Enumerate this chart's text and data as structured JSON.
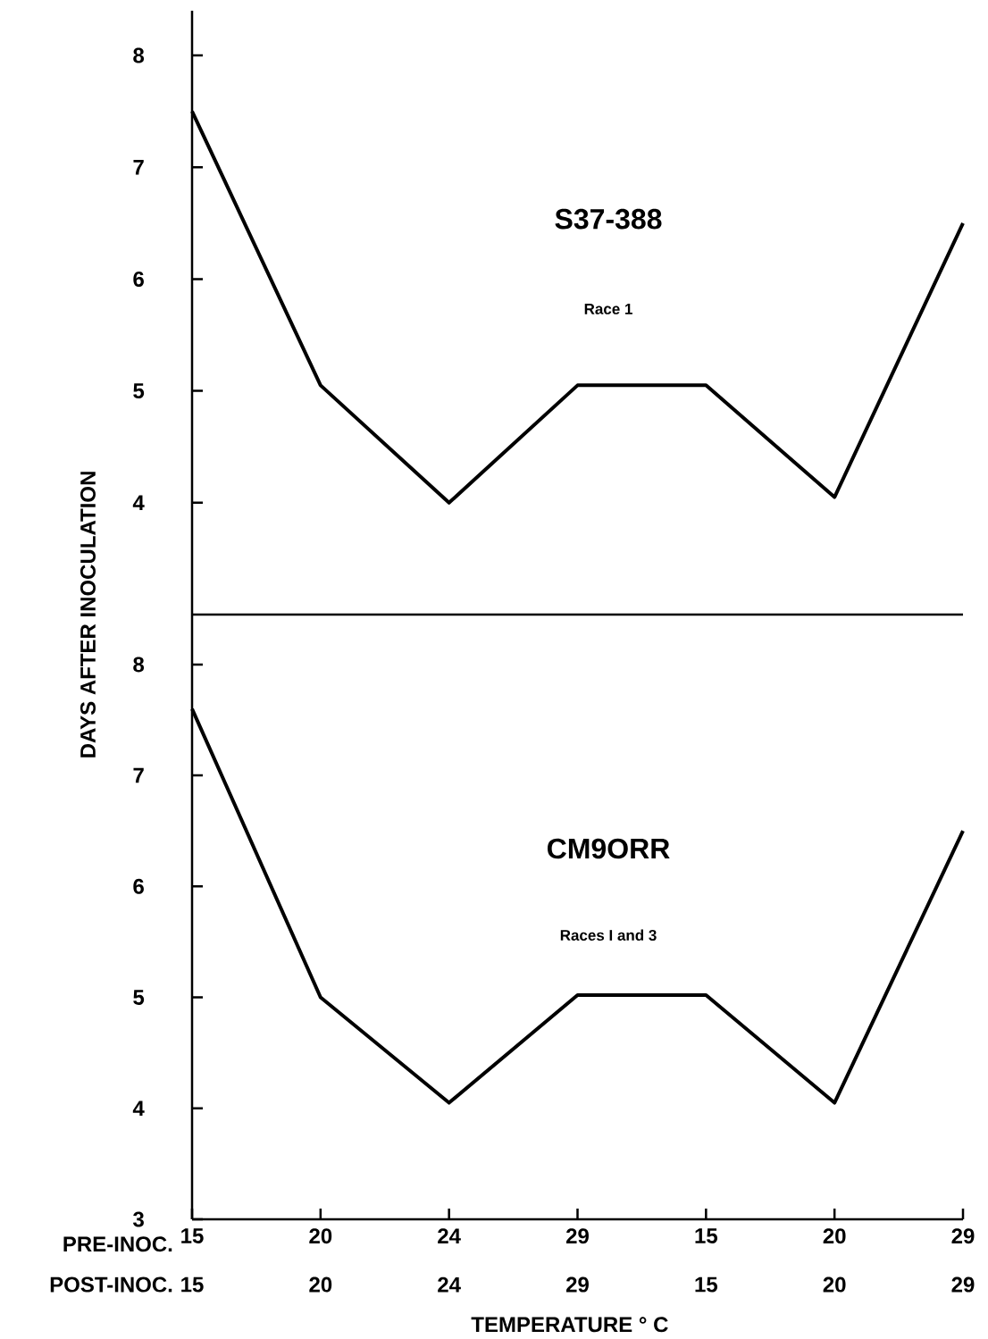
{
  "chart_data": [
    {
      "type": "line",
      "title": "S37-388",
      "subtitle": "Race 1",
      "ylabel": "DAYS AFTER INOCULATION",
      "categories": [
        "15",
        "20",
        "24",
        "29",
        "15",
        "20",
        "29"
      ],
      "series": [
        {
          "color": "#000000",
          "values": [
            7.5,
            5.05,
            4.0,
            5.05,
            5.05,
            4.05,
            6.5
          ]
        }
      ],
      "ylim": [
        3,
        8.4
      ],
      "yticks": [
        4,
        5,
        6,
        7,
        8
      ],
      "tick_labels": "y"
    },
    {
      "type": "line",
      "title": "CM9ORR",
      "subtitle": "Races I and 3",
      "xlabel": "TEMPERATURE ° C",
      "categories": [
        "15",
        "20",
        "24",
        "29",
        "15",
        "20",
        "29"
      ],
      "series": [
        {
          "color": "#000000",
          "values": [
            7.6,
            5.0,
            4.05,
            5.02,
            5.02,
            4.05,
            6.5
          ]
        }
      ],
      "ylim": [
        3,
        8.45
      ],
      "yticks": [
        3,
        4,
        5,
        6,
        7,
        8
      ],
      "annotations": [
        "PRE-INOC.",
        "POST-INOC.",
        "15",
        "20",
        "24",
        "29",
        "15",
        "20",
        "29"
      ]
    }
  ]
}
